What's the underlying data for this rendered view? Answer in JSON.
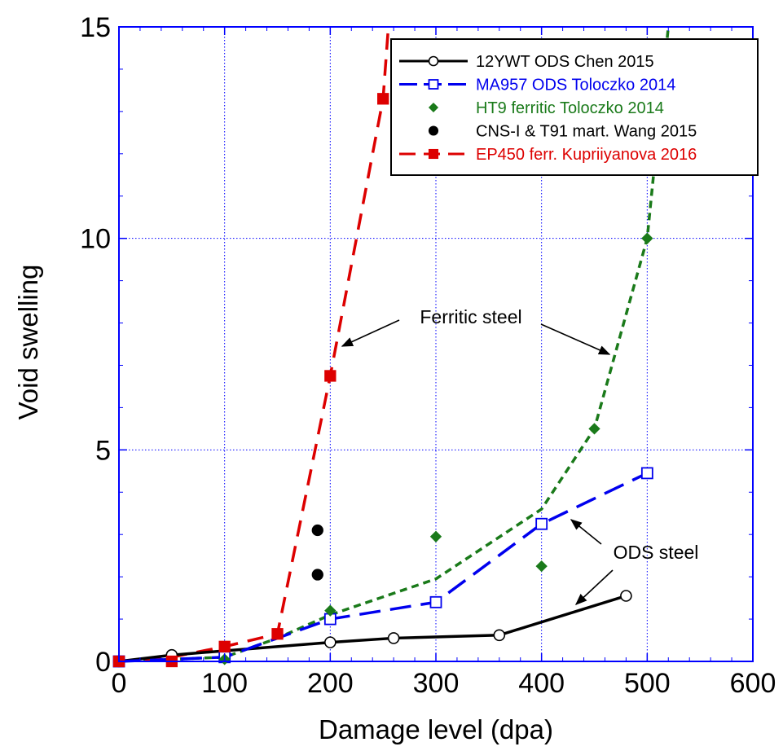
{
  "chart_data": {
    "type": "line",
    "title": "",
    "xlabel": "Damage level (dpa)",
    "ylabel": "Void swelling",
    "xlim": [
      0,
      600
    ],
    "ylim": [
      0,
      15
    ],
    "xticks": [
      0,
      100,
      200,
      300,
      400,
      500,
      600
    ],
    "yticks": [
      0,
      5,
      10,
      15
    ],
    "grid": true,
    "legend_position": "top-right",
    "series": [
      {
        "name": "12YWT ODS Chen 2015",
        "color": "#000000",
        "marker": "open-circle",
        "line": "solid",
        "x": [
          0,
          50,
          200,
          260,
          360,
          480
        ],
        "y": [
          0,
          0.15,
          0.45,
          0.55,
          0.62,
          1.55
        ]
      },
      {
        "name": "MA957 ODS Toloczko 2014",
        "color": "#0000ee",
        "marker": "open-square",
        "line": "long-dash",
        "x": [
          0,
          100,
          200,
          300,
          400,
          500
        ],
        "y": [
          0,
          0.1,
          1.0,
          1.4,
          3.25,
          4.45
        ]
      },
      {
        "name": "HT9 ferritic Toloczko 2014",
        "color": "#1a7a1a",
        "marker": "diamond",
        "line": "none",
        "x": [
          0,
          100,
          200,
          300,
          400,
          450,
          500
        ],
        "y": [
          0,
          0.05,
          1.2,
          2.95,
          2.25,
          5.5,
          10.0
        ]
      },
      {
        "name": "CNS-I  & T91 mart. Wang 2015",
        "color": "#000000",
        "marker": "filled-circle",
        "line": "none",
        "x": [
          188,
          188
        ],
        "y": [
          3.1,
          2.05
        ]
      },
      {
        "name": "EP450 ferr. Kupriiyanova 2016",
        "color": "#dd0000",
        "marker": "filled-square",
        "line": "dash",
        "x": [
          0,
          50,
          100,
          150,
          200,
          250
        ],
        "y": [
          0,
          0,
          0.35,
          0.65,
          6.75,
          13.3
        ]
      }
    ],
    "trend_curves": [
      {
        "series": "HT9 ferritic Toloczko 2014",
        "color": "#1a7a1a",
        "line": "short-dash",
        "x": [
          0,
          100,
          150,
          200,
          300,
          400,
          450,
          500,
          520
        ],
        "y": [
          0,
          0.1,
          0.55,
          1.1,
          1.95,
          3.6,
          5.5,
          10.0,
          15.0
        ]
      },
      {
        "series": "EP450 ferr. Kupriiyanova 2016",
        "color": "#dd0000",
        "line": "dash",
        "x": [
          0,
          50,
          100,
          150,
          200,
          250,
          255
        ],
        "y": [
          0,
          0.1,
          0.35,
          0.65,
          6.75,
          13.3,
          15.0
        ]
      }
    ],
    "annotations": [
      {
        "text": "Ferritic steel"
      },
      {
        "text": "ODS steel"
      }
    ]
  }
}
